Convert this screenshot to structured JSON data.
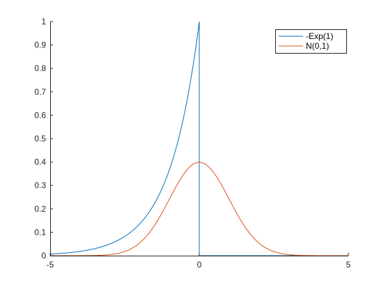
{
  "chart_data": {
    "type": "line",
    "xlim": [
      -5,
      5
    ],
    "ylim": [
      0,
      1
    ],
    "xticks": [
      -5,
      0,
      5
    ],
    "yticks": [
      0,
      0.1,
      0.2,
      0.3,
      0.4,
      0.5,
      0.6,
      0.7,
      0.8,
      0.9,
      1
    ],
    "grid": false,
    "legend_position": "top-right",
    "series": [
      {
        "name": "-Exp(1)",
        "color": "#0072bd",
        "function": "exp(x) for x <= 0, 0 for x > 0"
      },
      {
        "name": "N(0,1)",
        "color": "#d95319",
        "function": "standard normal pdf"
      }
    ]
  }
}
